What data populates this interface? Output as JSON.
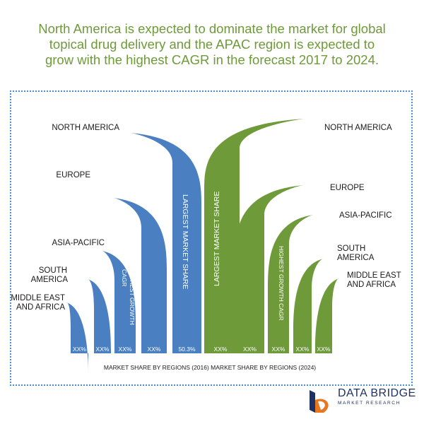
{
  "headline": {
    "line1": "North America is expected to dominate the market for global",
    "line2": "topical drug delivery and the APAC region is expected to",
    "line3": "grow with the highest CAGR in the forecast 2017 to 2024."
  },
  "colors": {
    "blue": "#4a7fc1",
    "green": "#6e9a3a",
    "text": "#1a1a1a",
    "headline": "#6e9a3a",
    "border": "#4a90d0",
    "logo": "#1e3160",
    "logo_orange": "#e87722"
  },
  "chart_data": {
    "type": "bar",
    "xlabel": "MARKET SHARE BY REGIONS (2016) MARKET SHARE BY REGIONS (2024)",
    "series": [
      {
        "name": "MARKET SHARE BY REGIONS (2016)",
        "categories": [
          "MIDDLE EAST AND AFRICA",
          "SOUTH AMERICA",
          "ASIA-PACIFIC",
          "EUROPE",
          "NORTH AMERICA"
        ],
        "value_labels": [
          "XX%",
          "XX%",
          "XX%",
          "XX%",
          "50.3%"
        ],
        "values": [
          null,
          null,
          null,
          null,
          50.3
        ],
        "bar_annotations": [
          "",
          "",
          "HIGHEST GROWTH CAGR",
          "",
          "LARGEST MARKET SHARE"
        ]
      },
      {
        "name": "MARKET SHARE BY REGIONS (2024)",
        "categories": [
          "NORTH AMERICA",
          "EUROPE",
          "ASIA-PACIFIC",
          "SOUTH AMERICA",
          "MIDDLE EAST AND AFRICA"
        ],
        "value_labels": [
          "XX%",
          "XX%",
          "XX%",
          "XX%",
          "XX%"
        ],
        "values": [
          null,
          null,
          null,
          null,
          null
        ],
        "bar_annotations": [
          "LARGEST MARKET SHARE",
          "",
          "HIGHEST GROWTH CAGR",
          "",
          ""
        ]
      }
    ],
    "left_region_labels": {
      "north_america": "NORTH AMERICA",
      "europe": "EUROPE",
      "asia_pacific": "ASIA-PACIFIC",
      "south_america_1": "SOUTH",
      "south_america_2": "AMERICA",
      "mea_1": "MIDDLE EAST",
      "mea_2": "AND AFRICA"
    },
    "right_region_labels": {
      "north_america": "NORTH AMERICA",
      "europe": "EUROPE",
      "asia_pacific": "ASIA-PACIFIC",
      "south_america_1": "SOUTH",
      "south_america_2": "AMERICA",
      "mea_1": "MIDDLE EAST",
      "mea_2": "AND AFRICA"
    },
    "bar_texts": {
      "blue_largest": "LARGEST MARKET SHARE",
      "blue_growth_1": "HIGHEST GROWTH",
      "blue_growth_2": "CAGR",
      "green_largest": "LARGEST MARKET SHARE",
      "green_growth": "HIGHEST GROWTH CAGR"
    }
  },
  "logo": {
    "name": "DATA BRIDGE",
    "tagline": "MARKET RESEARCH"
  }
}
